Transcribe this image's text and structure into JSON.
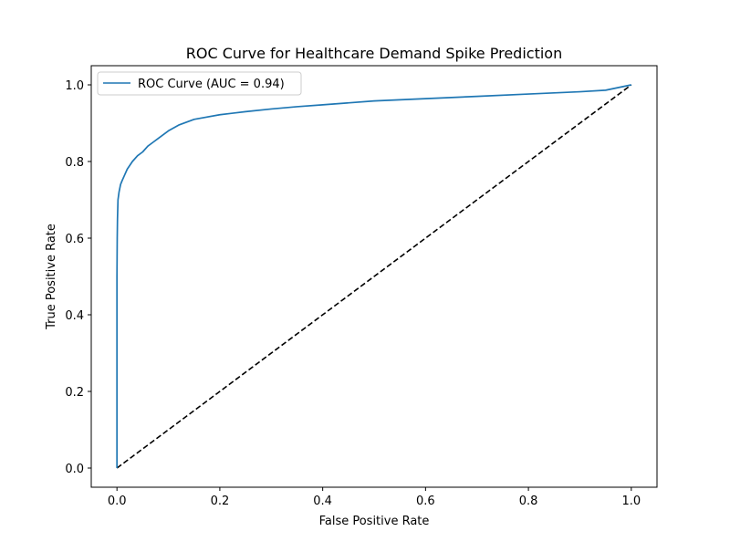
{
  "chart_data": {
    "type": "line",
    "title": "ROC Curve for Healthcare Demand Spike Prediction",
    "xlabel": "False Positive Rate",
    "ylabel": "True Positive Rate",
    "xlim": [
      -0.05,
      1.05
    ],
    "ylim": [
      -0.05,
      1.05
    ],
    "xticks": [
      0.0,
      0.2,
      0.4,
      0.6,
      0.8,
      1.0
    ],
    "yticks": [
      0.0,
      0.2,
      0.4,
      0.6,
      0.8,
      1.0
    ],
    "xtick_labels": [
      "0.0",
      "0.2",
      "0.4",
      "0.6",
      "0.8",
      "1.0"
    ],
    "ytick_labels": [
      "0.0",
      "0.2",
      "0.4",
      "0.6",
      "0.8",
      "1.0"
    ],
    "grid": false,
    "legend_position": "top-left",
    "series": [
      {
        "name": "ROC Curve (AUC = 0.94)",
        "color": "#1f77b4",
        "style": "solid",
        "x": [
          0.0,
          0.0,
          0.0005,
          0.001,
          0.002,
          0.004,
          0.007,
          0.01,
          0.015,
          0.02,
          0.03,
          0.04,
          0.05,
          0.06,
          0.07,
          0.08,
          0.1,
          0.12,
          0.15,
          0.2,
          0.25,
          0.3,
          0.35,
          0.4,
          0.5,
          0.6,
          0.7,
          0.8,
          0.9,
          0.95,
          1.0
        ],
        "y": [
          0.0,
          0.5,
          0.6,
          0.65,
          0.7,
          0.72,
          0.74,
          0.75,
          0.765,
          0.78,
          0.8,
          0.815,
          0.825,
          0.84,
          0.85,
          0.86,
          0.88,
          0.895,
          0.91,
          0.922,
          0.93,
          0.937,
          0.943,
          0.948,
          0.958,
          0.964,
          0.97,
          0.976,
          0.982,
          0.986,
          1.0
        ]
      },
      {
        "color": "#000000",
        "style": "dashed",
        "x": [
          0.0,
          1.0
        ],
        "y": [
          0.0,
          1.0
        ]
      }
    ]
  }
}
